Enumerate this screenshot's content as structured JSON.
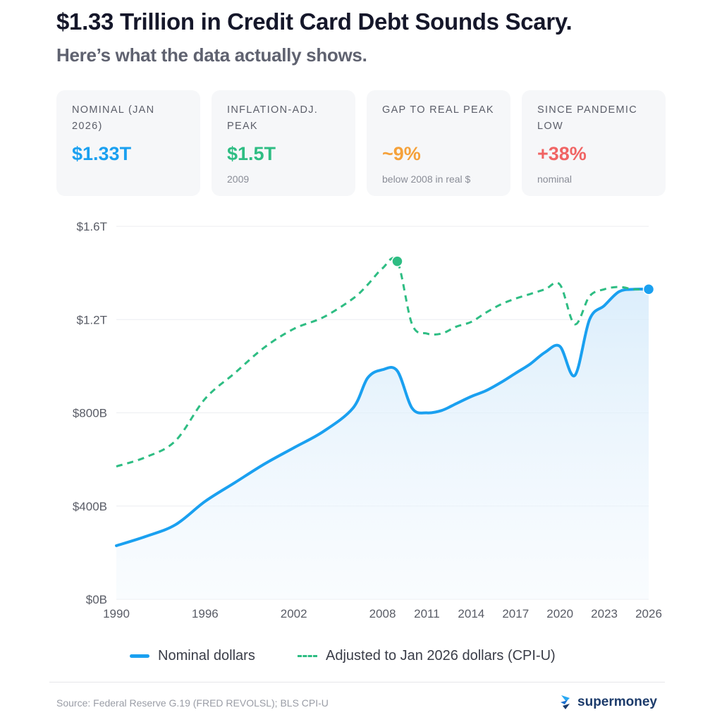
{
  "header": {
    "title": "$1.33 Trillion in Credit Card Debt Sounds Scary.",
    "subtitle": "Here’s what the data actually shows."
  },
  "cards": [
    {
      "label": "NOMINAL (JAN 2026)",
      "value": "$1.33T",
      "note": "",
      "color": "#1aa0f0"
    },
    {
      "label": "INFLATION-ADJ. PEAK",
      "value": "$1.5T",
      "note": "2009",
      "color": "#2ebd83"
    },
    {
      "label": "GAP TO REAL PEAK",
      "value": "~9%",
      "note": "below 2008 in real $",
      "color": "#f5a13a"
    },
    {
      "label": "SINCE PANDEMIC LOW",
      "value": "+38%",
      "note": "nominal",
      "color": "#f06464"
    }
  ],
  "chart_data": {
    "type": "line",
    "x_ticks": [
      "1990",
      "1996",
      "2002",
      "2008",
      "2011",
      "2014",
      "2017",
      "2020",
      "2023",
      "2026"
    ],
    "y_ticks": [
      "$0B",
      "$400B",
      "$800B",
      "$1.2T",
      "$1.6T"
    ],
    "y_tick_values": [
      0,
      400,
      800,
      1200,
      1600
    ],
    "ylim": [
      0,
      1600
    ],
    "grid": true,
    "legend_position": "bottom",
    "series": [
      {
        "name": "Nominal dollars",
        "style": "solid",
        "color": "#1aa0f0",
        "fill": true,
        "x": [
          1990,
          1992,
          1994,
          1996,
          1998,
          2000,
          2002,
          2004,
          2006,
          2007,
          2008,
          2009,
          2010,
          2011,
          2012,
          2013,
          2014,
          2015,
          2016,
          2017,
          2018,
          2019,
          2020,
          2021,
          2022,
          2023,
          2024,
          2025,
          2026
        ],
        "values": [
          230,
          270,
          320,
          420,
          500,
          580,
          650,
          720,
          820,
          950,
          985,
          980,
          820,
          800,
          810,
          840,
          870,
          895,
          930,
          970,
          1010,
          1060,
          1085,
          960,
          1200,
          1260,
          1320,
          1330,
          1330
        ]
      },
      {
        "name": "Adjusted to Jan 2026 dollars (CPI-U)",
        "style": "dashed",
        "color": "#2ebd83",
        "x": [
          1990,
          1992,
          1994,
          1996,
          1998,
          2000,
          2002,
          2004,
          2006,
          2007,
          2008,
          2009,
          2010,
          2011,
          2012,
          2013,
          2014,
          2015,
          2016,
          2017,
          2018,
          2019,
          2020,
          2021,
          2022,
          2023,
          2024,
          2025,
          2026
        ],
        "values": [
          570,
          610,
          680,
          860,
          970,
          1080,
          1160,
          1210,
          1290,
          1350,
          1420,
          1450,
          1180,
          1140,
          1140,
          1170,
          1190,
          1230,
          1265,
          1290,
          1310,
          1330,
          1350,
          1180,
          1300,
          1330,
          1340,
          1330,
          1330
        ]
      }
    ],
    "markers": [
      {
        "series": 1,
        "x": 2009,
        "value": 1450
      },
      {
        "series": 0,
        "x": 2026,
        "value": 1330
      }
    ]
  },
  "legend": [
    {
      "label": "Nominal dollars",
      "style": "solid",
      "color": "#1aa0f0"
    },
    {
      "label": "Adjusted to Jan 2026 dollars (CPI-U)",
      "style": "dashed",
      "color": "#2ebd83"
    }
  ],
  "footer": {
    "source": "Source: Federal Reserve G.19 (FRED REVOLSL); BLS CPI-U",
    "brand": "supermoney",
    "brand_color": "#1c3b6b"
  }
}
